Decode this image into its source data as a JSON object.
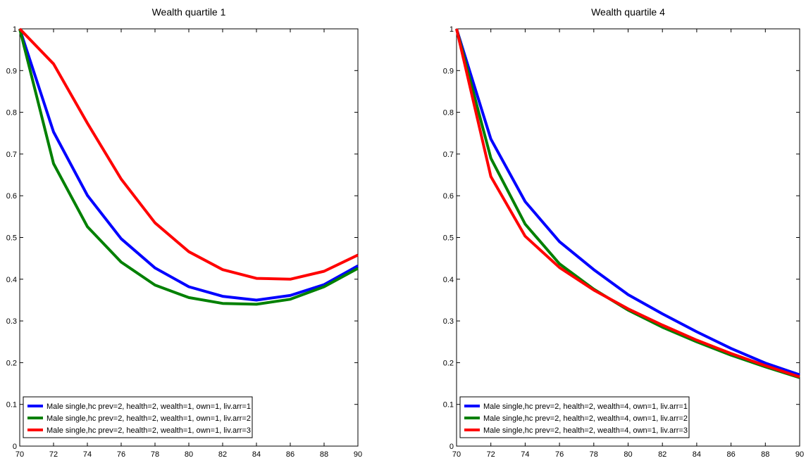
{
  "chart_data": [
    {
      "type": "line",
      "title": "Wealth quartile 1",
      "xlabel": "",
      "ylabel": "",
      "xlim": [
        70,
        90
      ],
      "ylim": [
        0,
        1
      ],
      "xticks": [
        70,
        72,
        74,
        76,
        78,
        80,
        82,
        84,
        86,
        88,
        90
      ],
      "yticks": [
        0,
        0.1,
        0.2,
        0.3,
        0.4,
        0.5,
        0.6,
        0.7,
        0.8,
        0.9,
        1
      ],
      "ytick_labels": [
        "0",
        "0.1",
        "0.2",
        "0.3",
        "0.4",
        "0.5",
        "0.6",
        "0.7",
        "0.8",
        "0.9",
        "1"
      ],
      "grid": false,
      "legend_position": "bottom-left",
      "x": [
        70,
        72,
        74,
        76,
        78,
        80,
        82,
        84,
        86,
        88,
        90
      ],
      "series": [
        {
          "name": "Male single,hc prev=2, health=2, wealth=1, own=1, liv.arr=1",
          "color": "#0000ff",
          "values": [
            1.0,
            0.753,
            0.601,
            0.497,
            0.427,
            0.382,
            0.359,
            0.35,
            0.361,
            0.387,
            0.432
          ]
        },
        {
          "name": "Male single,hc prev=2, health=2, wealth=1, own=1, liv.arr=2",
          "color": "#008000",
          "values": [
            1.0,
            0.677,
            0.526,
            0.441,
            0.386,
            0.356,
            0.342,
            0.34,
            0.352,
            0.382,
            0.426
          ]
        },
        {
          "name": "Male single,hc prev=2, health=2, wealth=1, own=1, liv.arr=3",
          "color": "#ff0000",
          "values": [
            1.0,
            0.916,
            0.774,
            0.64,
            0.535,
            0.466,
            0.423,
            0.402,
            0.4,
            0.419,
            0.458
          ]
        }
      ]
    },
    {
      "type": "line",
      "title": "Wealth quartile 4",
      "xlabel": "",
      "ylabel": "",
      "xlim": [
        70,
        90
      ],
      "ylim": [
        0,
        1
      ],
      "xticks": [
        70,
        72,
        74,
        76,
        78,
        80,
        82,
        84,
        86,
        88,
        90
      ],
      "yticks": [
        0,
        0.1,
        0.2,
        0.3,
        0.4,
        0.5,
        0.6,
        0.7,
        0.8,
        0.9,
        1
      ],
      "ytick_labels": [
        "0",
        "0.1",
        "0.2",
        "0.3",
        "0.4",
        "0.5",
        "0.6",
        "0.7",
        "0.8",
        "0.9",
        "1"
      ],
      "grid": false,
      "legend_position": "bottom-left",
      "x": [
        70,
        72,
        74,
        76,
        78,
        80,
        82,
        84,
        86,
        88,
        90
      ],
      "series": [
        {
          "name": "Male single,hc prev=2, health=2, wealth=4, own=1, liv.arr=1",
          "color": "#0000ff",
          "values": [
            1.0,
            0.736,
            0.586,
            0.49,
            0.423,
            0.363,
            0.317,
            0.274,
            0.234,
            0.199,
            0.171
          ]
        },
        {
          "name": "Male single,hc prev=2, health=2, wealth=4, own=1, liv.arr=2",
          "color": "#008000",
          "values": [
            1.0,
            0.69,
            0.532,
            0.437,
            0.376,
            0.326,
            0.285,
            0.25,
            0.218,
            0.19,
            0.164
          ]
        },
        {
          "name": "Male single,hc prev=2, health=2, wealth=4, own=1, liv.arr=3",
          "color": "#ff0000",
          "values": [
            1.0,
            0.646,
            0.503,
            0.428,
            0.374,
            0.329,
            0.29,
            0.254,
            0.222,
            0.193,
            0.166
          ]
        }
      ]
    }
  ]
}
